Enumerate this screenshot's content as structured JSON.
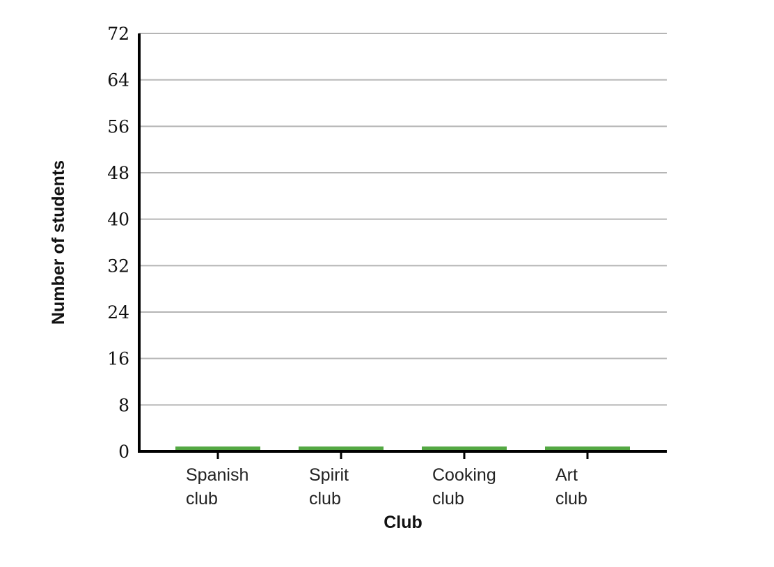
{
  "chart_data": {
    "type": "bar",
    "xlabel": "Club",
    "ylabel": "Number of students",
    "categories": [
      [
        "Spanish",
        "club"
      ],
      [
        "Spirit",
        "club"
      ],
      [
        "Cooking",
        "club"
      ],
      [
        "Art",
        "club"
      ]
    ],
    "values": [
      0,
      0,
      0,
      0
    ],
    "ylim": [
      0,
      72
    ],
    "yticks": [
      0,
      8,
      16,
      24,
      32,
      40,
      48,
      56,
      64,
      72
    ],
    "grid": true,
    "bar_color": "#54a843"
  }
}
